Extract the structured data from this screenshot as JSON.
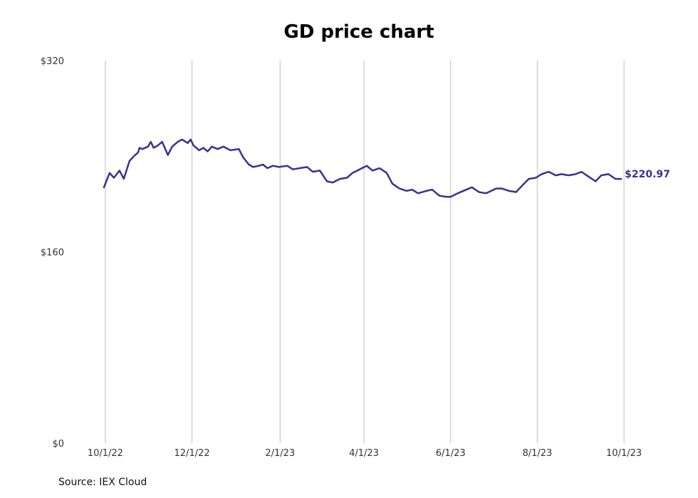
{
  "chart_data": {
    "type": "line",
    "title": "GD price chart",
    "source": "Source: IEX Cloud",
    "xlabel": "",
    "ylabel": "",
    "ylim": [
      0,
      320
    ],
    "y_ticks": [
      "$0",
      "$160",
      "$320"
    ],
    "y_tick_values": [
      0,
      160,
      320
    ],
    "x_ticks": [
      "10/1/22",
      "12/1/22",
      "2/1/23",
      "4/1/23",
      "6/1/23",
      "8/1/23",
      "10/1/23"
    ],
    "x_tick_dates": [
      "2022-10-01",
      "2022-12-01",
      "2023-02-01",
      "2023-04-01",
      "2023-06-01",
      "2023-08-01",
      "2023-10-01"
    ],
    "grid": "vertical",
    "line_color": "#363391",
    "last_label": "$220.97",
    "series": [
      {
        "x": [
          "2022-09-30",
          "2022-10-04",
          "2022-10-07",
          "2022-10-11",
          "2022-10-14",
          "2022-10-18",
          "2022-10-21",
          "2022-10-24",
          "2022-10-25",
          "2022-10-27",
          "2022-10-31",
          "2022-11-02",
          "2022-11-04",
          "2022-11-07",
          "2022-11-10",
          "2022-11-14",
          "2022-11-17",
          "2022-11-21",
          "2022-11-24",
          "2022-11-28",
          "2022-11-30",
          "2022-12-02",
          "2022-12-06",
          "2022-12-09",
          "2022-12-12",
          "2022-12-15",
          "2022-12-19",
          "2022-12-23",
          "2022-12-28",
          "2023-01-03",
          "2023-01-06",
          "2023-01-10",
          "2023-01-13",
          "2023-01-17",
          "2023-01-20",
          "2023-01-23",
          "2023-01-27",
          "2023-01-31",
          "2023-02-06",
          "2023-02-10",
          "2023-02-15",
          "2023-02-20",
          "2023-02-24",
          "2023-03-01",
          "2023-03-06",
          "2023-03-10",
          "2023-03-15",
          "2023-03-20",
          "2023-03-24",
          "2023-03-29",
          "2023-04-03",
          "2023-04-07",
          "2023-04-12",
          "2023-04-17",
          "2023-04-21",
          "2023-04-26",
          "2023-05-01",
          "2023-05-05",
          "2023-05-09",
          "2023-05-15",
          "2023-05-19",
          "2023-05-24",
          "2023-05-29",
          "2023-06-01",
          "2023-06-06",
          "2023-06-12",
          "2023-06-16",
          "2023-06-21",
          "2023-06-26",
          "2023-07-03",
          "2023-07-07",
          "2023-07-12",
          "2023-07-17",
          "2023-07-21",
          "2023-07-26",
          "2023-07-31",
          "2023-08-04",
          "2023-08-09",
          "2023-08-14",
          "2023-08-18",
          "2023-08-23",
          "2023-08-28",
          "2023-09-01",
          "2023-09-06",
          "2023-09-11",
          "2023-09-15",
          "2023-09-20",
          "2023-09-25",
          "2023-09-29"
        ],
        "y": [
          214,
          226,
          222,
          228,
          221,
          236,
          240,
          243,
          247,
          246,
          248,
          252,
          247,
          249,
          252,
          241,
          248,
          252,
          254,
          251,
          254,
          249,
          245,
          247,
          244,
          248,
          246,
          248,
          245,
          246,
          239,
          233,
          231,
          232,
          233,
          230,
          232,
          231,
          232,
          229,
          230,
          231,
          227,
          228,
          219,
          218,
          221,
          222,
          226,
          229,
          232,
          228,
          230,
          226,
          217,
          213,
          211,
          212,
          209,
          211,
          212,
          207,
          206,
          206,
          209,
          212,
          214,
          210,
          209,
          213,
          213,
          211,
          210,
          215,
          221,
          222,
          225,
          227,
          224,
          225,
          224,
          225,
          227,
          223,
          219,
          224,
          225,
          221,
          221
        ]
      }
    ]
  }
}
